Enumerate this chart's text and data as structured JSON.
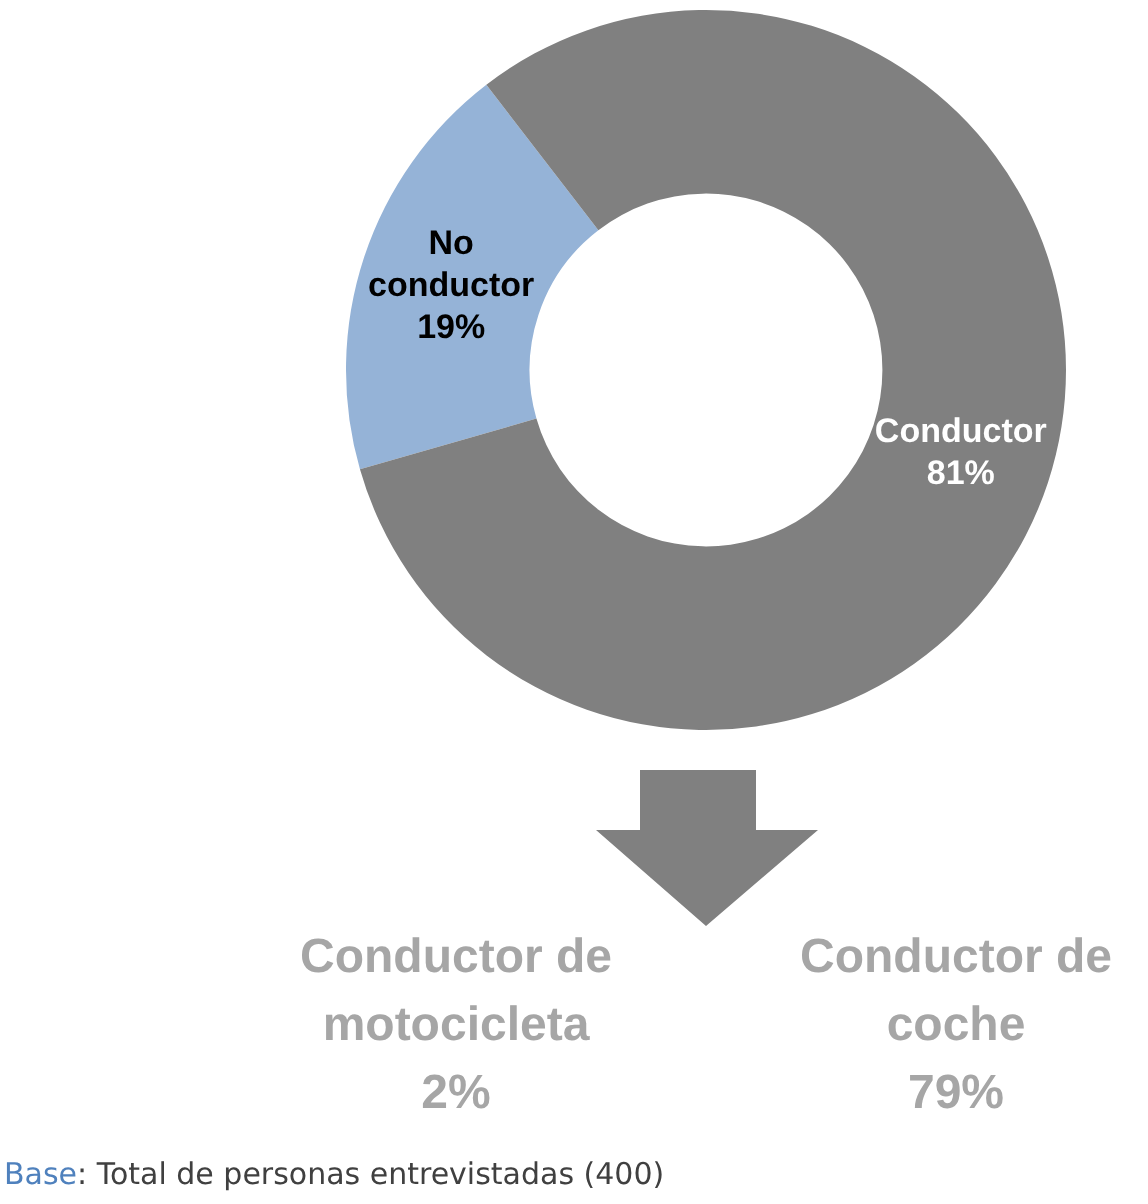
{
  "chart_data": {
    "type": "donut",
    "categories": [
      "No conductor",
      "Conductor"
    ],
    "values": [
      19,
      81
    ],
    "colors": [
      "#95b3d7",
      "#808080"
    ],
    "value_labels": [
      "19%",
      "81%"
    ],
    "legend": false,
    "annotations": [
      "Conductor de\nmotocicleta\n2%",
      "Conductor de\ncoche\n79%",
      "Base: Total de personas entrevistadas (400)"
    ]
  }
}
